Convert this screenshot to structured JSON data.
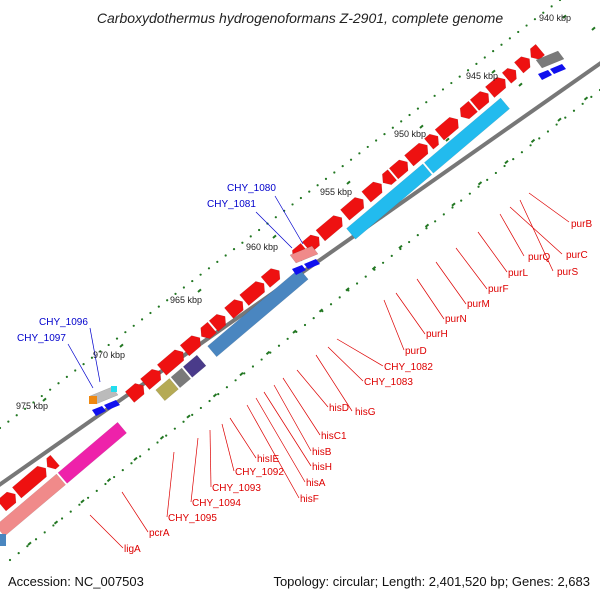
{
  "title": "Carboxydothermus hydrogenoformans Z-2901, complete genome",
  "footer": {
    "accession": "Accession: NC_007503",
    "topology": "Topology: circular; Length: 2,401,520 bp; Genes: 2,683"
  },
  "colors": {
    "gene_red": "#ee1111",
    "gene_pink": "#f08a8a",
    "gene_blue": "#1010ee",
    "gene_cyan": "#22bbee",
    "gene_steel": "#4a86c0",
    "gene_magenta": "#ee22aa",
    "gene_gray": "#7a7a7a",
    "gene_olive": "#b5aa55",
    "gene_purple": "#4a3b8a",
    "gene_orange": "#ee8811",
    "backbone": "#777777",
    "ticks": "#227722",
    "label_red": "#dd0000",
    "label_blue": "#0000cc"
  },
  "scale_labels": [
    "940 kbp",
    "945 kbp",
    "950 kbp",
    "955 kbp",
    "960 kbp",
    "965 kbp",
    "970 kbp",
    "975 kbp"
  ],
  "red_labels": [
    "purB",
    "purC",
    "purQ",
    "purS",
    "purL",
    "purF",
    "purM",
    "purN",
    "purH",
    "purD",
    "CHY_1082",
    "CHY_1083",
    "hisG",
    "hisD",
    "hisC1",
    "hisB",
    "hisH",
    "hisA",
    "hisF",
    "hisIE",
    "CHY_1092",
    "CHY_1093",
    "CHY_1094",
    "CHY_1095",
    "pcrA",
    "ligA"
  ],
  "blue_labels": [
    "CHY_1080",
    "CHY_1081",
    "CHY_1096",
    "CHY_1097"
  ]
}
